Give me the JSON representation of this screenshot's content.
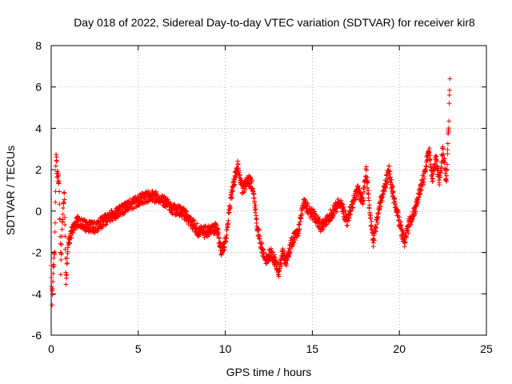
{
  "chart_data": {
    "type": "scatter",
    "title": "Day 018 of 2022, Sidereal Day-to-day VTEC variation (SDTVAR) for receiver kir8",
    "xlabel": "GPS time / hours",
    "ylabel": "SDTVAR / TECUs",
    "xlim": [
      0,
      25
    ],
    "ylim": [
      -6,
      8
    ],
    "x_ticks": [
      0,
      5,
      10,
      15,
      20,
      25
    ],
    "x_tick_labels": [
      "0",
      "5",
      "10",
      "15",
      "20",
      "25"
    ],
    "y_ticks": [
      -6,
      -4,
      -2,
      0,
      2,
      4,
      6,
      8
    ],
    "y_tick_labels": [
      "-6",
      "-4",
      "-2",
      "0",
      "2",
      "4",
      "6",
      "8"
    ],
    "grid": true,
    "marker": "+",
    "series": [
      {
        "name": "SDTVAR",
        "color": "#ff0000",
        "trend": [
          [
            0.0,
            -2.5
          ],
          [
            0.05,
            -4.3
          ],
          [
            0.12,
            -2.8
          ],
          [
            0.2,
            -2.0
          ],
          [
            0.28,
            2.7
          ],
          [
            0.35,
            1.7
          ],
          [
            0.45,
            1.5
          ],
          [
            0.55,
            -2.8
          ],
          [
            0.65,
            -0.5
          ],
          [
            0.75,
            0.8
          ],
          [
            0.85,
            -3.3
          ],
          [
            1.0,
            -1.5
          ],
          [
            1.2,
            -1.0
          ],
          [
            1.5,
            -0.5
          ],
          [
            2.0,
            -0.7
          ],
          [
            2.5,
            -0.8
          ],
          [
            3.0,
            -0.5
          ],
          [
            3.5,
            -0.2
          ],
          [
            4.0,
            0.0
          ],
          [
            4.5,
            0.3
          ],
          [
            5.0,
            0.5
          ],
          [
            5.5,
            0.7
          ],
          [
            6.0,
            0.7
          ],
          [
            6.5,
            0.5
          ],
          [
            7.0,
            0.1
          ],
          [
            7.5,
            0.0
          ],
          [
            8.0,
            -0.5
          ],
          [
            8.5,
            -1.0
          ],
          [
            9.0,
            -1.0
          ],
          [
            9.5,
            -0.8
          ],
          [
            9.8,
            -2.0
          ],
          [
            10.0,
            -1.5
          ],
          [
            10.3,
            0.5
          ],
          [
            10.7,
            2.2
          ],
          [
            11.0,
            1.0
          ],
          [
            11.3,
            1.5
          ],
          [
            11.6,
            1.2
          ],
          [
            11.8,
            -0.5
          ],
          [
            12.0,
            -1.5
          ],
          [
            12.3,
            -2.4
          ],
          [
            12.6,
            -2.0
          ],
          [
            12.9,
            -2.5
          ],
          [
            13.1,
            -3.0
          ],
          [
            13.3,
            -2.0
          ],
          [
            13.5,
            -2.5
          ],
          [
            13.8,
            -1.5
          ],
          [
            14.2,
            -1.0
          ],
          [
            14.5,
            0.5
          ],
          [
            14.8,
            0.0
          ],
          [
            15.2,
            -0.3
          ],
          [
            15.5,
            -0.8
          ],
          [
            15.8,
            -0.5
          ],
          [
            16.2,
            0.0
          ],
          [
            16.6,
            0.5
          ],
          [
            17.0,
            -0.5
          ],
          [
            17.3,
            0.3
          ],
          [
            17.6,
            1.0
          ],
          [
            17.9,
            0.5
          ],
          [
            18.1,
            2.0
          ],
          [
            18.3,
            0.0
          ],
          [
            18.5,
            -1.5
          ],
          [
            18.8,
            0.0
          ],
          [
            19.1,
            1.0
          ],
          [
            19.4,
            2.0
          ],
          [
            19.7,
            0.5
          ],
          [
            20.0,
            -0.5
          ],
          [
            20.3,
            -1.5
          ],
          [
            20.6,
            -0.5
          ],
          [
            20.9,
            0.0
          ],
          [
            21.2,
            1.0
          ],
          [
            21.5,
            2.0
          ],
          [
            21.7,
            3.0
          ],
          [
            21.9,
            1.5
          ],
          [
            22.1,
            2.5
          ],
          [
            22.3,
            1.5
          ],
          [
            22.5,
            3.0
          ],
          [
            22.7,
            1.5
          ],
          [
            22.85,
            4.5
          ],
          [
            22.9,
            6.4
          ]
        ]
      }
    ]
  }
}
